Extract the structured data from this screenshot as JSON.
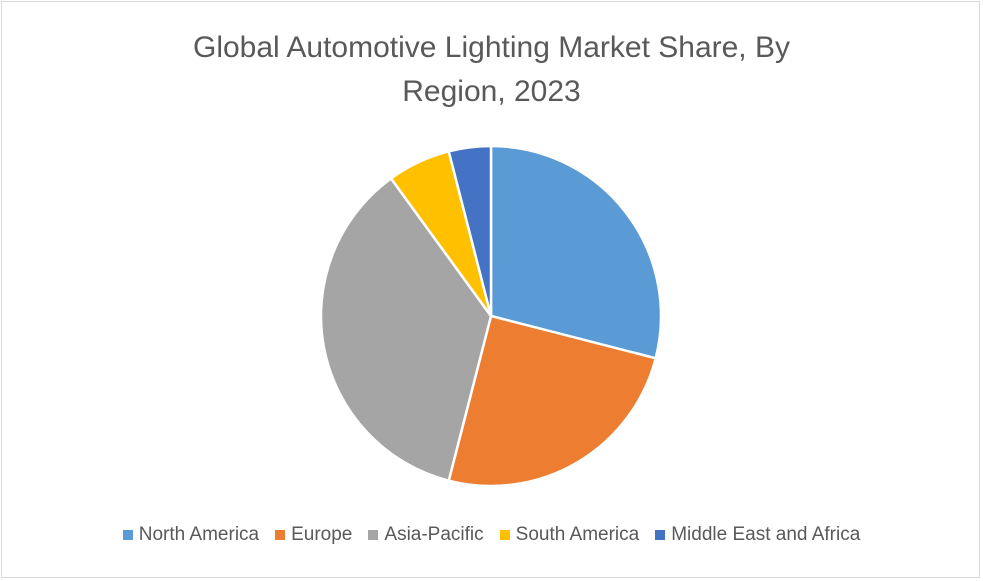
{
  "chart_data": {
    "type": "pie",
    "title": "Global Automotive Lighting  Market Share, By\nRegion, 2023",
    "categories": [
      "North America",
      "Europe",
      "Asia-Pacific",
      "South America",
      "Middle East and Africa"
    ],
    "values": [
      29,
      25,
      36,
      6,
      4
    ],
    "colors": [
      "#5b9bd5",
      "#ed7d31",
      "#a5a5a5",
      "#ffc000",
      "#4472c4"
    ],
    "slice_border_color": "#ffffff",
    "start_angle": "12 o'clock",
    "direction": "clockwise",
    "legend_position": "bottom"
  }
}
